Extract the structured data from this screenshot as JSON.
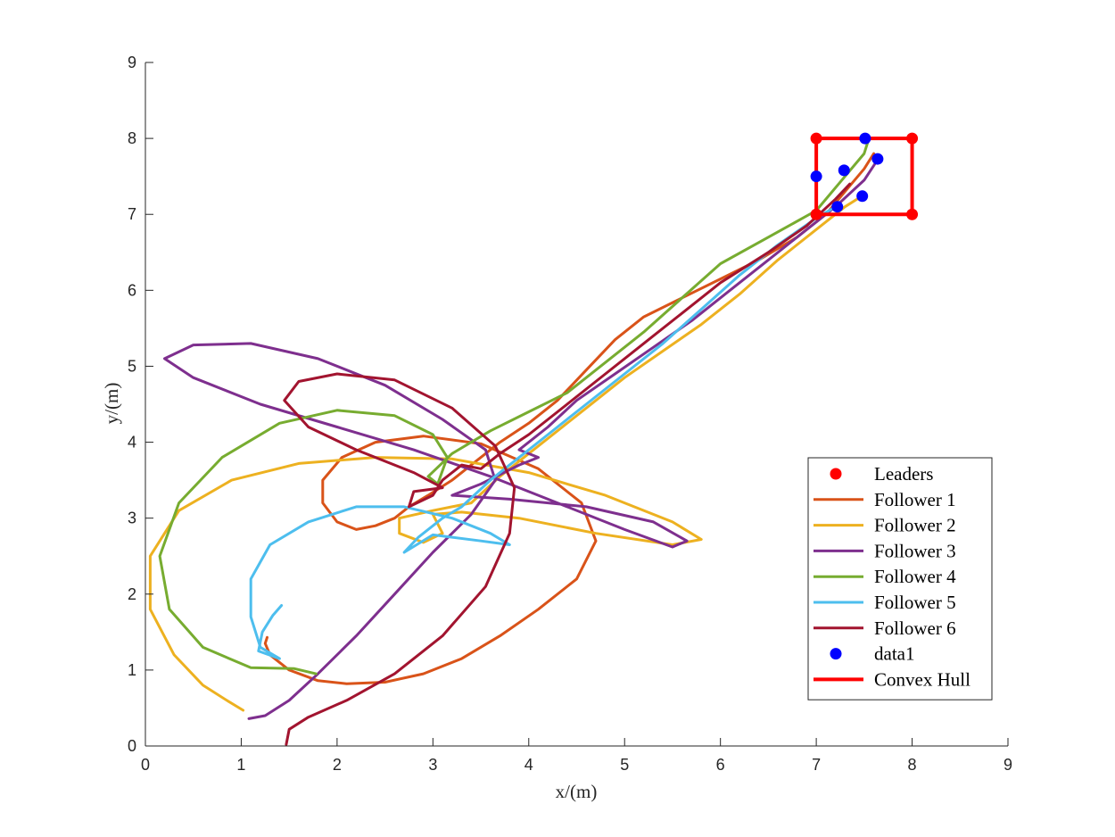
{
  "chart_data": {
    "type": "line",
    "title": "",
    "xlabel": "x/(m)",
    "ylabel": "y/(m)",
    "xlim": [
      0,
      9
    ],
    "ylim": [
      0,
      9
    ],
    "xticks": [
      "0",
      "1",
      "2",
      "3",
      "4",
      "5",
      "6",
      "7",
      "8",
      "9"
    ],
    "yticks": [
      "0",
      "1",
      "2",
      "3",
      "4",
      "5",
      "6",
      "7",
      "8",
      "9"
    ],
    "grid": false,
    "legend_position": "bottom-right",
    "legend": [
      "Leaders",
      "Follower 1",
      "Follower 2",
      "Follower 3",
      "Follower 4",
      "Follower 5",
      "Follower 6",
      "data1",
      "Convex Hull"
    ],
    "leaders": {
      "name": "Leaders",
      "color": "#ff0000",
      "points": [
        [
          7,
          8
        ],
        [
          8,
          8
        ],
        [
          8,
          7
        ],
        [
          7,
          7
        ]
      ]
    },
    "convex_hull": {
      "name": "Convex Hull",
      "color": "#ff0000",
      "points": [
        [
          7,
          7
        ],
        [
          8,
          7
        ],
        [
          8,
          8
        ],
        [
          7,
          8
        ],
        [
          7,
          7
        ]
      ]
    },
    "data1": {
      "name": "data1",
      "color": "#0000ff",
      "points": [
        [
          7.51,
          8.0
        ],
        [
          7.64,
          7.73
        ],
        [
          7.29,
          7.58
        ],
        [
          7.0,
          7.5
        ],
        [
          7.48,
          7.24
        ],
        [
          7.22,
          7.1
        ]
      ]
    },
    "series": [
      {
        "name": "Follower 1",
        "color": "#d95319",
        "points": [
          [
            1.27,
            1.43
          ],
          [
            1.25,
            1.35
          ],
          [
            1.3,
            1.2
          ],
          [
            1.5,
            1.0
          ],
          [
            1.8,
            0.86
          ],
          [
            2.1,
            0.82
          ],
          [
            2.5,
            0.84
          ],
          [
            2.9,
            0.95
          ],
          [
            3.3,
            1.15
          ],
          [
            3.7,
            1.45
          ],
          [
            4.1,
            1.8
          ],
          [
            4.5,
            2.2
          ],
          [
            4.7,
            2.7
          ],
          [
            4.55,
            3.2
          ],
          [
            4.1,
            3.65
          ],
          [
            3.5,
            3.98
          ],
          [
            2.9,
            4.08
          ],
          [
            2.4,
            4.0
          ],
          [
            2.05,
            3.8
          ],
          [
            1.85,
            3.5
          ],
          [
            1.85,
            3.2
          ],
          [
            2.0,
            2.95
          ],
          [
            2.2,
            2.85
          ],
          [
            2.4,
            2.9
          ],
          [
            2.6,
            3.0
          ],
          [
            2.75,
            3.15
          ],
          [
            2.95,
            3.3
          ],
          [
            3.2,
            3.5
          ],
          [
            3.4,
            3.7
          ],
          [
            3.7,
            4.0
          ],
          [
            4.0,
            4.25
          ],
          [
            4.3,
            4.55
          ],
          [
            4.6,
            4.95
          ],
          [
            4.9,
            5.35
          ],
          [
            5.2,
            5.65
          ],
          [
            5.6,
            5.9
          ],
          [
            6.0,
            6.15
          ],
          [
            6.4,
            6.4
          ],
          [
            6.8,
            6.7
          ],
          [
            7.1,
            7.0
          ],
          [
            7.3,
            7.3
          ],
          [
            7.5,
            7.6
          ],
          [
            7.6,
            7.8
          ]
        ]
      },
      {
        "name": "Follower 2",
        "color": "#edb120",
        "points": [
          [
            1.02,
            0.47
          ],
          [
            0.85,
            0.6
          ],
          [
            0.6,
            0.8
          ],
          [
            0.3,
            1.2
          ],
          [
            0.05,
            1.8
          ],
          [
            0.05,
            2.5
          ],
          [
            0.35,
            3.1
          ],
          [
            0.9,
            3.5
          ],
          [
            1.6,
            3.72
          ],
          [
            2.4,
            3.8
          ],
          [
            3.2,
            3.78
          ],
          [
            4.0,
            3.6
          ],
          [
            4.8,
            3.3
          ],
          [
            5.5,
            2.95
          ],
          [
            5.8,
            2.72
          ],
          [
            5.5,
            2.65
          ],
          [
            4.7,
            2.8
          ],
          [
            3.9,
            3.0
          ],
          [
            3.3,
            3.08
          ],
          [
            3.0,
            3.05
          ],
          [
            3.1,
            2.8
          ],
          [
            2.9,
            2.68
          ],
          [
            2.65,
            2.8
          ],
          [
            2.65,
            3.0
          ],
          [
            3.0,
            3.1
          ],
          [
            3.4,
            3.2
          ],
          [
            3.7,
            3.55
          ],
          [
            4.0,
            3.85
          ],
          [
            4.3,
            4.15
          ],
          [
            4.6,
            4.45
          ],
          [
            5.0,
            4.85
          ],
          [
            5.4,
            5.2
          ],
          [
            5.8,
            5.55
          ],
          [
            6.2,
            5.95
          ],
          [
            6.6,
            6.4
          ],
          [
            7.0,
            6.8
          ],
          [
            7.3,
            7.1
          ],
          [
            7.45,
            7.22
          ]
        ]
      },
      {
        "name": "Follower 3",
        "color": "#7e2f8e",
        "points": [
          [
            1.08,
            0.36
          ],
          [
            1.25,
            0.4
          ],
          [
            1.5,
            0.6
          ],
          [
            1.8,
            0.95
          ],
          [
            2.2,
            1.45
          ],
          [
            2.6,
            2.0
          ],
          [
            3.0,
            2.55
          ],
          [
            3.4,
            3.05
          ],
          [
            3.65,
            3.5
          ],
          [
            3.55,
            3.9
          ],
          [
            3.1,
            4.3
          ],
          [
            2.5,
            4.75
          ],
          [
            1.8,
            5.1
          ],
          [
            1.1,
            5.3
          ],
          [
            0.5,
            5.28
          ],
          [
            0.2,
            5.1
          ],
          [
            0.5,
            4.85
          ],
          [
            1.2,
            4.5
          ],
          [
            2.0,
            4.2
          ],
          [
            2.8,
            3.9
          ],
          [
            3.6,
            3.55
          ],
          [
            4.3,
            3.2
          ],
          [
            5.0,
            2.85
          ],
          [
            5.5,
            2.62
          ],
          [
            5.65,
            2.7
          ],
          [
            5.3,
            2.95
          ],
          [
            4.6,
            3.15
          ],
          [
            3.8,
            3.25
          ],
          [
            3.2,
            3.3
          ],
          [
            3.5,
            3.45
          ],
          [
            3.9,
            3.7
          ],
          [
            4.1,
            3.8
          ],
          [
            3.9,
            3.9
          ],
          [
            4.2,
            4.2
          ],
          [
            4.5,
            4.55
          ],
          [
            4.9,
            4.9
          ],
          [
            5.3,
            5.25
          ],
          [
            5.7,
            5.6
          ],
          [
            6.1,
            6.0
          ],
          [
            6.5,
            6.4
          ],
          [
            6.9,
            6.8
          ],
          [
            7.2,
            7.1
          ],
          [
            7.5,
            7.45
          ],
          [
            7.62,
            7.68
          ]
        ]
      },
      {
        "name": "Follower 4",
        "color": "#77ac30",
        "points": [
          [
            1.78,
            0.95
          ],
          [
            1.55,
            1.02
          ],
          [
            1.1,
            1.03
          ],
          [
            0.6,
            1.3
          ],
          [
            0.25,
            1.8
          ],
          [
            0.15,
            2.5
          ],
          [
            0.35,
            3.2
          ],
          [
            0.8,
            3.8
          ],
          [
            1.4,
            4.25
          ],
          [
            2.0,
            4.42
          ],
          [
            2.6,
            4.35
          ],
          [
            3.0,
            4.1
          ],
          [
            3.15,
            3.8
          ],
          [
            3.05,
            3.45
          ],
          [
            2.95,
            3.55
          ],
          [
            3.2,
            3.85
          ],
          [
            3.6,
            4.15
          ],
          [
            4.0,
            4.4
          ],
          [
            4.4,
            4.65
          ],
          [
            4.8,
            5.05
          ],
          [
            5.2,
            5.45
          ],
          [
            5.6,
            5.9
          ],
          [
            6.0,
            6.35
          ],
          [
            6.5,
            6.7
          ],
          [
            7.0,
            7.05
          ],
          [
            7.3,
            7.5
          ],
          [
            7.5,
            7.8
          ],
          [
            7.55,
            8.0
          ]
        ]
      },
      {
        "name": "Follower 5",
        "color": "#4dbeee",
        "points": [
          [
            1.42,
            1.85
          ],
          [
            1.33,
            1.72
          ],
          [
            1.22,
            1.5
          ],
          [
            1.18,
            1.25
          ],
          [
            1.4,
            1.15
          ],
          [
            1.2,
            1.3
          ],
          [
            1.1,
            1.7
          ],
          [
            1.1,
            2.2
          ],
          [
            1.3,
            2.65
          ],
          [
            1.7,
            2.95
          ],
          [
            2.2,
            3.15
          ],
          [
            2.7,
            3.15
          ],
          [
            3.2,
            3.0
          ],
          [
            3.6,
            2.8
          ],
          [
            3.8,
            2.65
          ],
          [
            3.5,
            2.7
          ],
          [
            3.0,
            2.78
          ],
          [
            2.7,
            2.55
          ],
          [
            2.85,
            2.75
          ],
          [
            3.1,
            3.0
          ],
          [
            3.3,
            3.15
          ],
          [
            3.6,
            3.5
          ],
          [
            3.9,
            3.8
          ],
          [
            4.2,
            4.1
          ],
          [
            4.6,
            4.5
          ],
          [
            5.0,
            4.9
          ],
          [
            5.4,
            5.3
          ],
          [
            5.8,
            5.75
          ],
          [
            6.2,
            6.2
          ],
          [
            6.6,
            6.6
          ],
          [
            7.0,
            6.95
          ],
          [
            7.2,
            7.1
          ]
        ]
      },
      {
        "name": "Follower 6",
        "color": "#a2142f",
        "points": [
          [
            1.47,
            0.02
          ],
          [
            1.5,
            0.22
          ],
          [
            1.7,
            0.38
          ],
          [
            2.1,
            0.6
          ],
          [
            2.6,
            0.95
          ],
          [
            3.1,
            1.45
          ],
          [
            3.55,
            2.1
          ],
          [
            3.8,
            2.8
          ],
          [
            3.85,
            3.4
          ],
          [
            3.65,
            3.95
          ],
          [
            3.2,
            4.45
          ],
          [
            2.6,
            4.82
          ],
          [
            2.0,
            4.9
          ],
          [
            1.6,
            4.8
          ],
          [
            1.45,
            4.55
          ],
          [
            1.7,
            4.2
          ],
          [
            2.2,
            3.9
          ],
          [
            2.8,
            3.6
          ],
          [
            3.1,
            3.4
          ],
          [
            2.8,
            3.35
          ],
          [
            2.75,
            3.15
          ],
          [
            3.0,
            3.3
          ],
          [
            3.1,
            3.5
          ],
          [
            3.3,
            3.7
          ],
          [
            3.5,
            3.65
          ],
          [
            3.7,
            3.85
          ],
          [
            4.0,
            4.1
          ],
          [
            4.4,
            4.5
          ],
          [
            4.8,
            4.9
          ],
          [
            5.2,
            5.3
          ],
          [
            5.6,
            5.7
          ],
          [
            6.0,
            6.1
          ],
          [
            6.5,
            6.5
          ],
          [
            6.9,
            6.85
          ],
          [
            7.2,
            7.2
          ],
          [
            7.35,
            7.4
          ]
        ]
      }
    ]
  }
}
